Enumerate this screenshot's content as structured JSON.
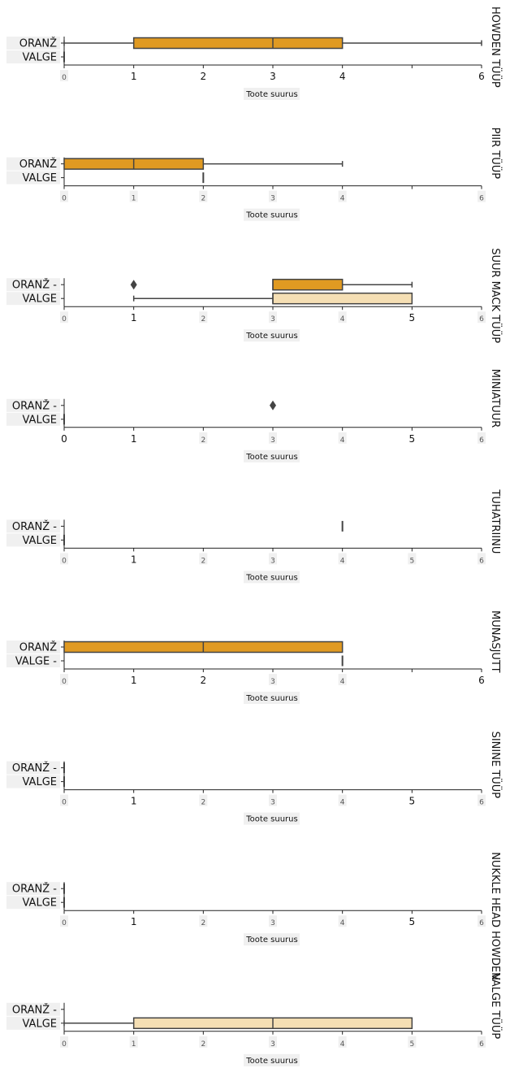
{
  "chart_data": {
    "type": "box",
    "orientation": "horizontal",
    "colors": {
      "orange": "#e09a22",
      "white": "#f5dfb4",
      "line": "#444444"
    },
    "categories": [
      "ORANŽ",
      "VALGE"
    ],
    "panels": [
      {
        "title": "HOWDEN TÜÜP",
        "category_labels": [
          "ORANŽ",
          "VALGE"
        ],
        "xlabel": "Toote suurus",
        "xlim": [
          0,
          6
        ],
        "tick_labels": [
          "0",
          "1",
          "2",
          "3",
          "4",
          "",
          "6"
        ],
        "small_ticks": [
          0
        ],
        "boxes": [
          {
            "category": "ORANŽ",
            "min": 0,
            "q1": 1,
            "median": 3,
            "q3": 4,
            "max": 6,
            "outliers": []
          },
          {
            "category": "VALGE",
            "min": 0,
            "q1": 0,
            "median": 0,
            "q3": 0,
            "max": 0,
            "outliers": []
          }
        ]
      },
      {
        "title": "PIIR TÜÜP",
        "category_labels": [
          "ORANŽ",
          "VALGE"
        ],
        "xlabel": "Toote suurus",
        "xlim": [
          0,
          6
        ],
        "tick_labels": [
          "0",
          "1",
          "2",
          "3",
          "4",
          "",
          "6"
        ],
        "small_ticks": [
          0,
          1,
          2,
          3,
          4,
          6
        ],
        "boxes": [
          {
            "category": "ORANŽ",
            "min": 0,
            "q1": 0,
            "median": 1,
            "q3": 2,
            "max": 4,
            "outliers": []
          },
          {
            "category": "VALGE",
            "min": 2,
            "q1": 2,
            "median": 2,
            "q3": 2,
            "max": 2,
            "outliers": []
          }
        ]
      },
      {
        "title": "SUUR MACK TÜÜP",
        "category_labels": [
          "ORANŽ -",
          "VALGE"
        ],
        "xlabel": "Toote suurus",
        "xlim": [
          0,
          6
        ],
        "tick_labels": [
          "0",
          "1",
          "2",
          "3",
          "4",
          "5",
          "6"
        ],
        "small_ticks": [
          0,
          2,
          3,
          4,
          6
        ],
        "boxes": [
          {
            "category": "ORANŽ",
            "min": 3,
            "q1": 3,
            "median": 3,
            "q3": 4,
            "max": 5,
            "outliers": [
              1
            ]
          },
          {
            "category": "VALGE",
            "min": 1,
            "q1": 3,
            "median": 3,
            "q3": 5,
            "max": 5,
            "outliers": []
          }
        ]
      },
      {
        "title": "MINIATUUR",
        "category_labels": [
          "ORANŽ -",
          "VALGE"
        ],
        "xlabel": "Toote suurus",
        "xlim": [
          0,
          6
        ],
        "tick_labels": [
          "0",
          "1",
          "2",
          "3",
          "4",
          "5",
          "6"
        ],
        "small_ticks": [
          2,
          3,
          4,
          6
        ],
        "boxes": [
          {
            "category": "ORANŽ",
            "min": null,
            "q1": null,
            "median": null,
            "q3": null,
            "max": null,
            "outliers": [
              3
            ]
          },
          {
            "category": "VALGE",
            "min": 0,
            "q1": 0,
            "median": 0,
            "q3": 0,
            "max": 0,
            "outliers": []
          }
        ]
      },
      {
        "title": "TUHATRIINU",
        "category_labels": [
          "ORANŽ -",
          "VALGE"
        ],
        "xlabel": "Toote suurus",
        "xlim": [
          0,
          6
        ],
        "tick_labels": [
          "0",
          "1",
          "2",
          "3",
          "4",
          "5",
          "6"
        ],
        "small_ticks": [
          0,
          2,
          3,
          4,
          5,
          6
        ],
        "boxes": [
          {
            "category": "ORANŽ",
            "min": 4,
            "q1": 4,
            "median": 4,
            "q3": 4,
            "max": 4,
            "outliers": []
          },
          {
            "category": "VALGE",
            "min": 0,
            "q1": 0,
            "median": 0,
            "q3": 0,
            "max": 0,
            "outliers": []
          }
        ]
      },
      {
        "title": "MUNASJUTT",
        "category_labels": [
          "ORANŽ",
          "VALGE -"
        ],
        "xlabel": "Toote suurus",
        "xlim": [
          0,
          6
        ],
        "tick_labels": [
          "0",
          "1",
          "2",
          "3",
          "4",
          "",
          "6"
        ],
        "small_ticks": [
          0,
          3,
          4
        ],
        "boxes": [
          {
            "category": "ORANŽ",
            "min": 0,
            "q1": 0,
            "median": 2,
            "q3": 4,
            "max": 4,
            "outliers": []
          },
          {
            "category": "VALGE",
            "min": 4,
            "q1": 4,
            "median": 4,
            "q3": 4,
            "max": 4,
            "outliers": []
          }
        ]
      },
      {
        "title": "SININE TÜÜP",
        "category_labels": [
          "ORANŽ -",
          "VALGE"
        ],
        "xlabel": "Toote suurus",
        "xlim": [
          0,
          6
        ],
        "tick_labels": [
          "0",
          "1",
          "2",
          "3",
          "4",
          "5",
          "6"
        ],
        "small_ticks": [
          0,
          2,
          3,
          4,
          6
        ],
        "boxes": [
          {
            "category": "ORANŽ",
            "min": 0,
            "q1": 0,
            "median": 0,
            "q3": 0,
            "max": 0,
            "outliers": []
          },
          {
            "category": "VALGE",
            "min": 0,
            "q1": 0,
            "median": 0,
            "q3": 0,
            "max": 0,
            "outliers": []
          }
        ]
      },
      {
        "title": "NUKKLE HEAD HOWDEN",
        "category_labels": [
          "ORANŽ -",
          "VALGE"
        ],
        "xlabel": "Toote suurus",
        "xlim": [
          0,
          6
        ],
        "tick_labels": [
          "0",
          "1",
          "2",
          "3",
          "4",
          "5",
          "6"
        ],
        "small_ticks": [
          0,
          2,
          3,
          4,
          6
        ],
        "boxes": [
          {
            "category": "ORANŽ",
            "min": 0,
            "q1": 0,
            "median": 0,
            "q3": 0,
            "max": 0,
            "outliers": []
          },
          {
            "category": "VALGE",
            "min": 0,
            "q1": 0,
            "median": 0,
            "q3": 0,
            "max": 0,
            "outliers": []
          }
        ]
      },
      {
        "title": "VALGE TÜÜP",
        "category_labels": [
          "ORANŽ -",
          "VALGE"
        ],
        "xlabel": "Toote suurus",
        "xlim": [
          0,
          6
        ],
        "tick_labels": [
          "0",
          "1",
          "2",
          "3",
          "4",
          "5",
          "6"
        ],
        "small_ticks": [
          0,
          1,
          2,
          3,
          4,
          5,
          6
        ],
        "boxes": [
          {
            "category": "ORANŽ",
            "min": null,
            "q1": null,
            "median": null,
            "q3": null,
            "max": null,
            "outliers": []
          },
          {
            "category": "VALGE",
            "min": 0,
            "q1": 1,
            "median": 3,
            "q3": 5,
            "max": 5,
            "outliers": []
          }
        ]
      }
    ]
  }
}
